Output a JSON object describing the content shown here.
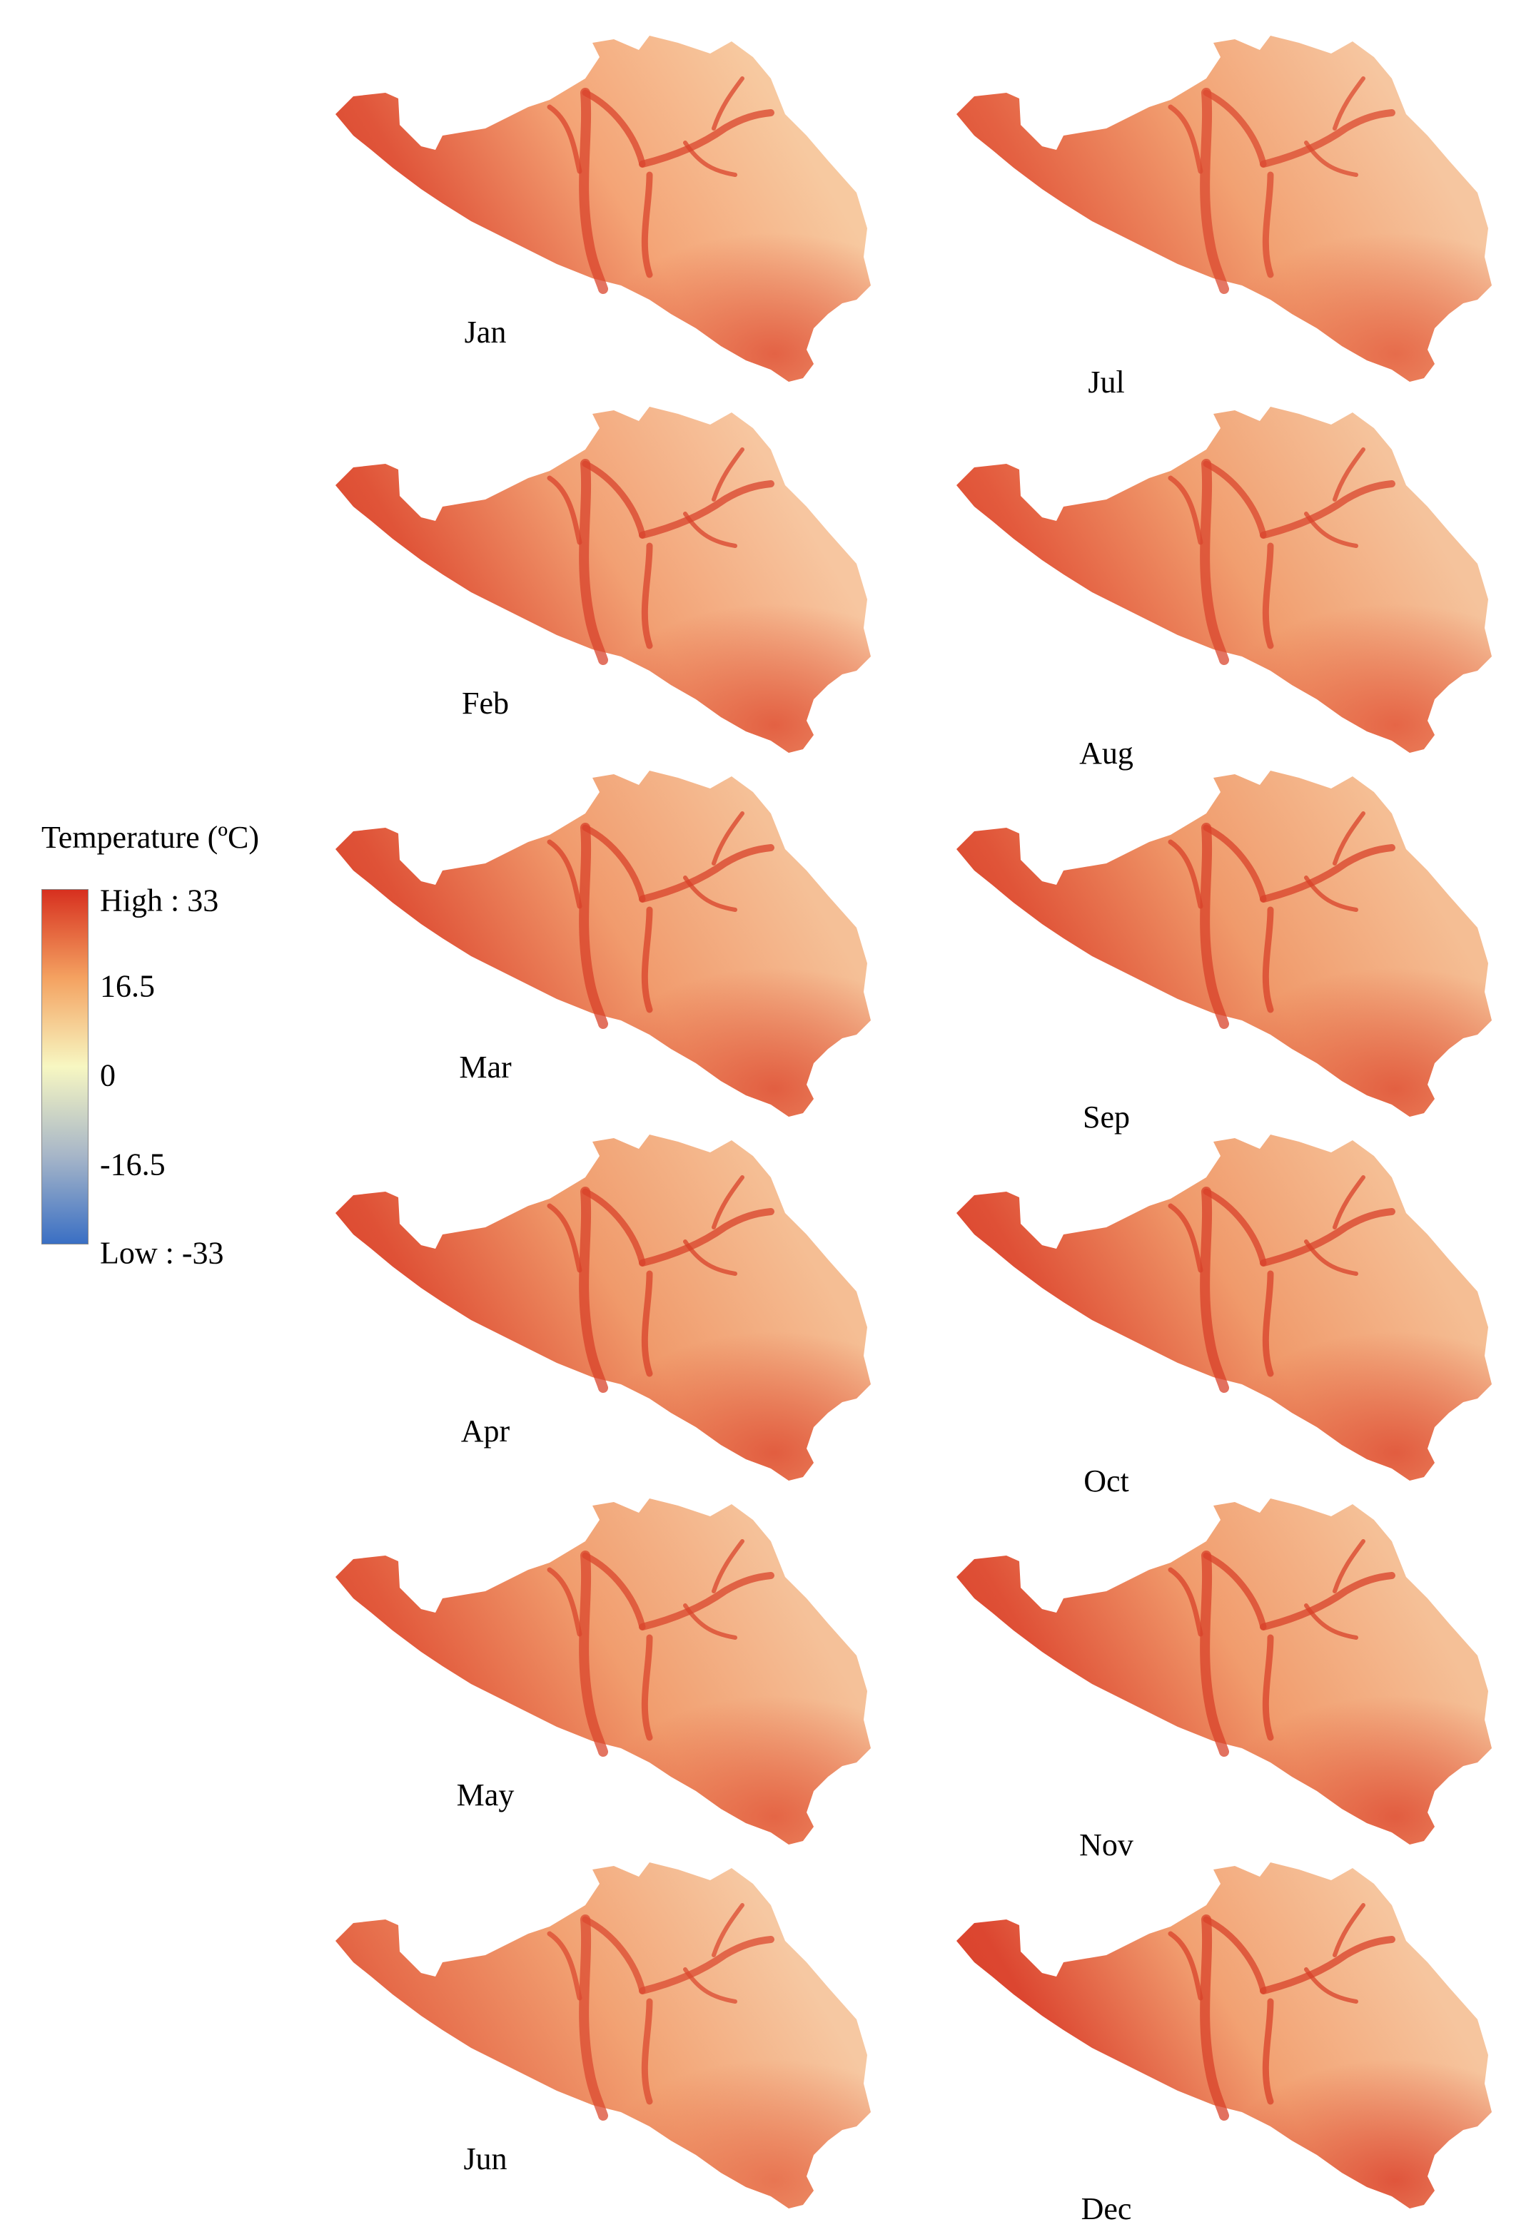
{
  "legend": {
    "title": "Temperature (ºC)",
    "ticks": [
      {
        "label": "High : 33",
        "value": 33
      },
      {
        "label": "16.5",
        "value": 16.5
      },
      {
        "label": "0",
        "value": 0
      },
      {
        "label": "-16.5",
        "value": -16.5
      },
      {
        "label": "Low : -33",
        "value": -33
      }
    ],
    "min": -33,
    "max": 33,
    "colors": {
      "high": "#d7301f",
      "mid_high": "#f4a261",
      "mid": "#f7f7c2",
      "mid_low": "#a7b6c8",
      "low": "#3a6fc4"
    }
  },
  "maps": [
    {
      "month": "Jan",
      "column": 0,
      "row": 0,
      "tone": {
        "base": "#f4a476",
        "valley": "#d9442c",
        "lowland": "#e0553a",
        "highland": "#f7c9a0"
      }
    },
    {
      "month": "Feb",
      "column": 0,
      "row": 1,
      "tone": {
        "base": "#f2a073",
        "valley": "#d8432c",
        "lowland": "#e05438",
        "highland": "#f7c6a0"
      }
    },
    {
      "month": "Mar",
      "column": 0,
      "row": 2,
      "tone": {
        "base": "#f19b6d",
        "valley": "#d8412a",
        "lowland": "#df5237",
        "highland": "#f5c097"
      }
    },
    {
      "month": "Apr",
      "column": 0,
      "row": 3,
      "tone": {
        "base": "#f09a6b",
        "valley": "#d8412a",
        "lowland": "#df5136",
        "highland": "#f5be94"
      }
    },
    {
      "month": "May",
      "column": 0,
      "row": 4,
      "tone": {
        "base": "#f19d6e",
        "valley": "#d9452c",
        "lowland": "#e25a3c",
        "highland": "#f5c199"
      }
    },
    {
      "month": "Jun",
      "column": 0,
      "row": 5,
      "tone": {
        "base": "#f2a273",
        "valley": "#db4a30",
        "lowland": "#e66c4a",
        "highland": "#f6c8a2"
      }
    },
    {
      "month": "Jul",
      "column": 1,
      "row": 0,
      "tone": {
        "base": "#f2a172",
        "valley": "#db4a30",
        "lowland": "#e46142",
        "highland": "#f6c6a0"
      }
    },
    {
      "month": "Aug",
      "column": 1,
      "row": 1,
      "tone": {
        "base": "#f19e6f",
        "valley": "#da462d",
        "lowland": "#e35a3d",
        "highland": "#f5c39c"
      }
    },
    {
      "month": "Sep",
      "column": 1,
      "row": 2,
      "tone": {
        "base": "#f09a6b",
        "valley": "#d8412a",
        "lowland": "#e05438",
        "highland": "#f5be94"
      }
    },
    {
      "month": "Oct",
      "column": 1,
      "row": 3,
      "tone": {
        "base": "#f09a6b",
        "valley": "#d8402a",
        "lowland": "#df5036",
        "highland": "#f5be94"
      }
    },
    {
      "month": "Nov",
      "column": 1,
      "row": 4,
      "tone": {
        "base": "#f19c6d",
        "valley": "#d8412a",
        "lowland": "#df5036",
        "highland": "#f5c097"
      }
    },
    {
      "month": "Dec",
      "column": 1,
      "row": 5,
      "tone": {
        "base": "#f2a172",
        "valley": "#d8412a",
        "lowland": "#dc4630",
        "highland": "#f6c59e"
      }
    }
  ]
}
